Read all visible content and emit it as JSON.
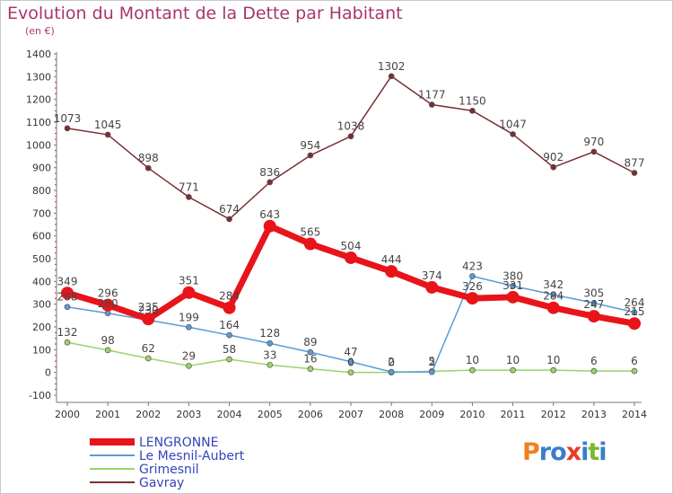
{
  "title": "Evolution du Montant de la Dette par Habitant",
  "unit": "(en €)",
  "logo": {
    "text": "Proxiti",
    "colors": [
      "#f0801e",
      "#3a7fc8",
      "#3a7fc8",
      "#e83a2a",
      "#3a7fc8",
      "#7ab82e",
      "#3a7fc8"
    ]
  },
  "chart_data": {
    "type": "line",
    "title": "Evolution du Montant de la Dette par Habitant",
    "subtitle": "(en €)",
    "xlabel": "",
    "ylabel": "",
    "ylim": [
      -100,
      1400
    ],
    "yticks": [
      -100,
      0,
      100,
      200,
      300,
      400,
      500,
      600,
      700,
      800,
      900,
      1000,
      1100,
      1200,
      1300,
      1400
    ],
    "x": [
      2000,
      2001,
      2002,
      2003,
      2004,
      2005,
      2006,
      2007,
      2008,
      2009,
      2010,
      2011,
      2012,
      2013,
      2014
    ],
    "legend_position": "bottom-left",
    "grid": false,
    "series": [
      {
        "name": "LENGRONNE",
        "color": "#e8141a",
        "values": [
          349,
          296,
          235,
          351,
          284,
          643,
          565,
          504,
          444,
          374,
          326,
          331,
          284,
          247,
          215
        ]
      },
      {
        "name": "Le Mesnil-Aubert",
        "color": "#5b9bd5",
        "values": [
          288,
          260,
          230,
          199,
          164,
          128,
          89,
          47,
          2,
          2,
          423,
          380,
          342,
          305,
          264
        ]
      },
      {
        "name": "Grimesnil",
        "color": "#98d46a",
        "values": [
          132,
          98,
          62,
          29,
          58,
          33,
          16,
          0,
          0,
          5,
          10,
          10,
          10,
          6,
          6
        ]
      },
      {
        "name": "Gavray",
        "color": "#7a2e33",
        "values": [
          1073,
          1045,
          898,
          771,
          674,
          836,
          954,
          1038,
          1302,
          1177,
          1150,
          1047,
          902,
          970,
          877
        ]
      }
    ]
  }
}
